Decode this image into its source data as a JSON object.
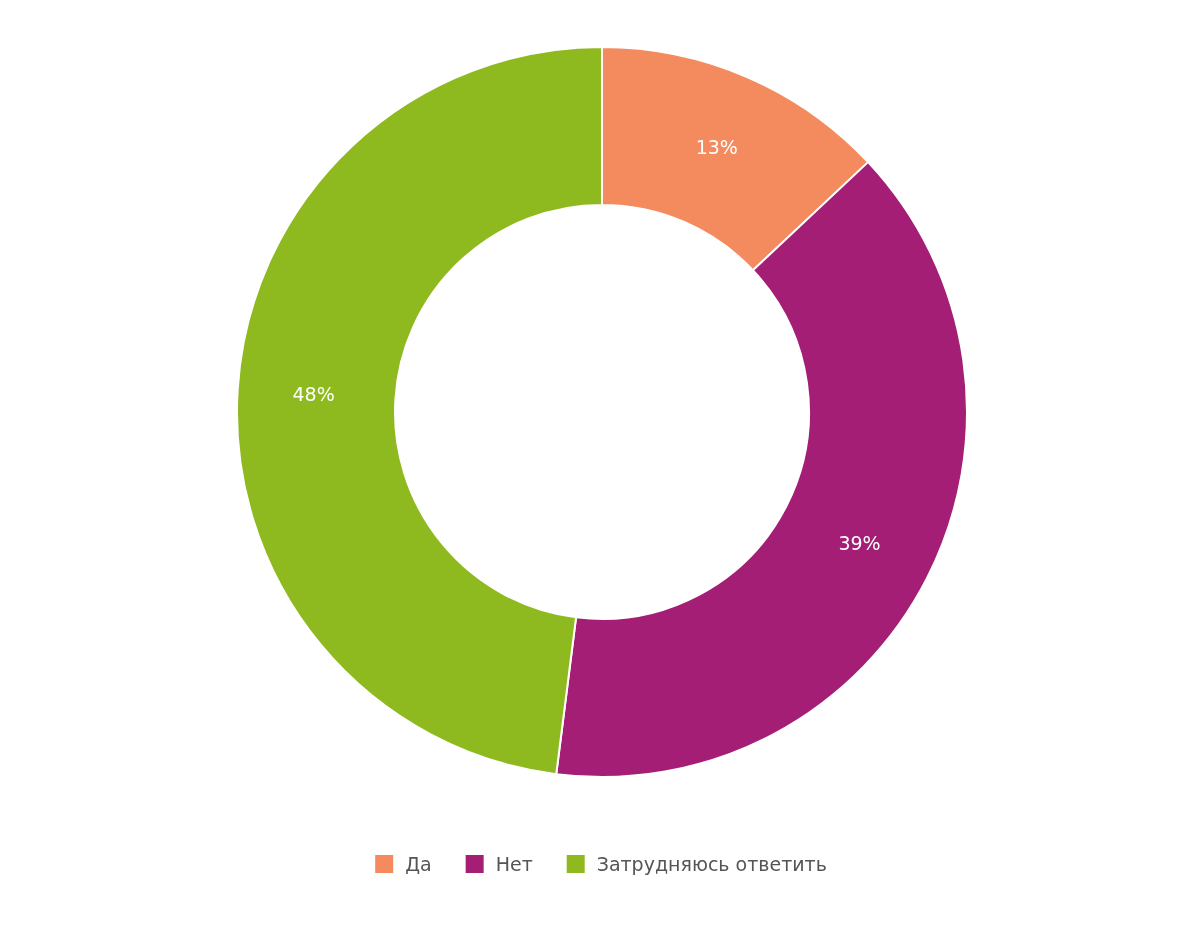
{
  "chart_data": {
    "type": "donut",
    "categories": [
      "Да",
      "Нет",
      "Затрудняюсь ответить"
    ],
    "values": [
      13,
      39,
      48
    ],
    "colors": [
      "#f48b5e",
      "#a31e74",
      "#8fba1f"
    ],
    "value_labels": [
      "13%",
      "39%",
      "48%"
    ],
    "legend": "bottom"
  }
}
